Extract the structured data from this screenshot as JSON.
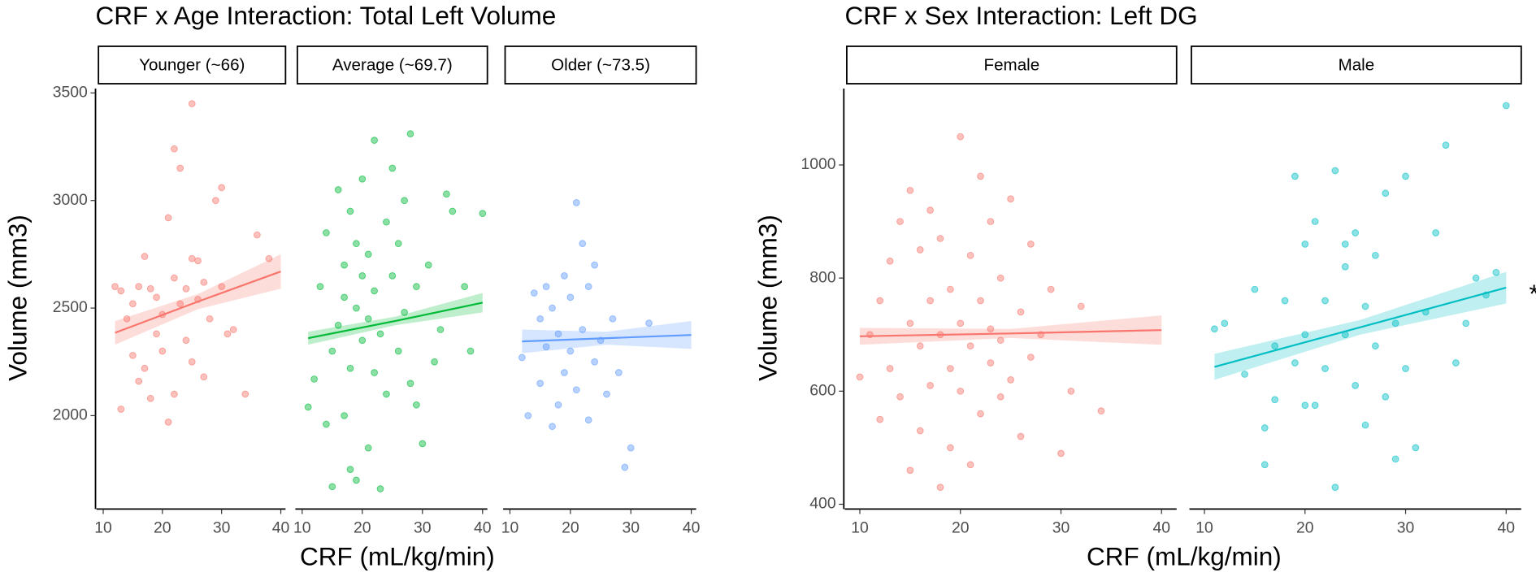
{
  "chart_data": [
    {
      "type": "scatter",
      "title": "CRF x Age Interaction: Total Left Volume",
      "xlabel": "CRF (mL/kg/min)",
      "ylabel": "Volume (mm3)",
      "xlim": [
        9.2,
        40.8
      ],
      "xticks": [
        10,
        20,
        30,
        40
      ],
      "ylim": [
        1575,
        3520
      ],
      "yticks": [
        2000,
        2500,
        3000,
        3500
      ],
      "facets": [
        {
          "name": "Younger (~66)",
          "color": "#F8766D",
          "x": [
            12,
            13,
            13,
            14,
            15,
            15,
            16,
            16,
            17,
            17,
            18,
            18,
            19,
            19,
            20,
            20,
            21,
            21,
            22,
            22,
            22,
            23,
            23,
            24,
            24,
            25,
            25,
            25,
            26,
            26,
            27,
            27,
            28,
            29,
            30,
            30,
            31,
            32,
            34,
            36,
            38
          ],
          "y": [
            2600,
            2030,
            2580,
            2450,
            2520,
            2280,
            2160,
            2600,
            2220,
            2740,
            2080,
            2590,
            2550,
            2380,
            2300,
            2470,
            1970,
            2920,
            2640,
            3240,
            2100,
            3150,
            2520,
            2350,
            2590,
            3450,
            2730,
            2250,
            2720,
            2540,
            2180,
            2620,
            2450,
            3000,
            3060,
            2600,
            2380,
            2400,
            2100,
            2840,
            2730
          ],
          "fit": {
            "x": [
              12,
              26,
              40
            ],
            "y": [
              2385,
              2530,
              2670
            ],
            "lower": [
              2330,
              2495,
              2590
            ],
            "upper": [
              2440,
              2565,
              2750
            ]
          }
        },
        {
          "name": "Average (~69.7)",
          "color": "#00BA38",
          "x": [
            11,
            12,
            13,
            14,
            14,
            15,
            15,
            16,
            16,
            17,
            17,
            17,
            18,
            18,
            18,
            19,
            19,
            19,
            20,
            20,
            20,
            21,
            21,
            21,
            22,
            22,
            22,
            23,
            23,
            24,
            24,
            25,
            25,
            26,
            26,
            27,
            27,
            28,
            28,
            29,
            29,
            30,
            31,
            32,
            33,
            34,
            35,
            37,
            38,
            40
          ],
          "y": [
            2040,
            2170,
            2600,
            1960,
            2850,
            1670,
            2300,
            3050,
            2420,
            2000,
            2700,
            2550,
            1750,
            2950,
            2220,
            2500,
            1700,
            2800,
            2350,
            3100,
            2650,
            1850,
            2450,
            2750,
            2200,
            3280,
            2580,
            1660,
            2380,
            2900,
            2100,
            2650,
            3150,
            2300,
            2800,
            2480,
            3000,
            2150,
            3310,
            2600,
            2050,
            1870,
            2700,
            2250,
            2400,
            3030,
            2950,
            2600,
            2300,
            2940
          ],
          "fit": {
            "x": [
              11,
              25.5,
              40
            ],
            "y": [
              2360,
              2440,
              2525
            ],
            "lower": [
              2330,
              2420,
              2480
            ],
            "upper": [
              2390,
              2460,
              2570
            ]
          }
        },
        {
          "name": "Older (~73.5)",
          "color": "#619CFF",
          "x": [
            12,
            13,
            14,
            15,
            15,
            16,
            16,
            17,
            17,
            18,
            18,
            19,
            19,
            20,
            20,
            21,
            21,
            22,
            22,
            23,
            23,
            24,
            24,
            25,
            26,
            27,
            28,
            29,
            30,
            33
          ],
          "y": [
            2270,
            2000,
            2570,
            2450,
            2150,
            2600,
            2320,
            1950,
            2500,
            2380,
            2050,
            2200,
            2650,
            2550,
            2300,
            2990,
            2120,
            2800,
            2400,
            1980,
            2600,
            2250,
            2700,
            2350,
            2100,
            2450,
            2200,
            1760,
            1850,
            2430
          ],
          "fit": {
            "x": [
              12,
              26,
              40
            ],
            "y": [
              2345,
              2360,
              2375
            ],
            "lower": [
              2290,
              2330,
              2310
            ],
            "upper": [
              2400,
              2390,
              2440
            ]
          }
        }
      ]
    },
    {
      "type": "scatter",
      "title": "CRF x Sex Interaction: Left DG",
      "xlabel": "CRF (mL/kg/min)",
      "ylabel": "Volume (mm3)",
      "xlim": [
        8.7,
        41.5
      ],
      "xticks": [
        10,
        20,
        30,
        40
      ],
      "ylim": [
        395,
        1135
      ],
      "yticks": [
        400,
        600,
        800,
        1000
      ],
      "annotation": "*",
      "facets": [
        {
          "name": "Female",
          "color": "#F8766D",
          "x": [
            10,
            11,
            12,
            12,
            13,
            13,
            14,
            14,
            15,
            15,
            15,
            16,
            16,
            16,
            17,
            17,
            17,
            18,
            18,
            18,
            19,
            19,
            19,
            20,
            20,
            20,
            21,
            21,
            21,
            22,
            22,
            22,
            23,
            23,
            23,
            24,
            24,
            24,
            25,
            25,
            26,
            26,
            27,
            27,
            28,
            29,
            30,
            31,
            32,
            34
          ],
          "y": [
            625,
            700,
            760,
            550,
            830,
            640,
            900,
            590,
            955,
            720,
            460,
            680,
            850,
            530,
            610,
            760,
            920,
            430,
            700,
            870,
            640,
            780,
            500,
            1050,
            720,
            600,
            840,
            470,
            680,
            980,
            560,
            760,
            650,
            900,
            710,
            590,
            800,
            690,
            940,
            620,
            740,
            520,
            860,
            660,
            700,
            780,
            490,
            600,
            750,
            565
          ],
          "fit": {
            "x": [
              10,
              25,
              40
            ],
            "y": [
              697,
              702,
              708
            ],
            "lower": [
              682,
              694,
              682
            ],
            "upper": [
              712,
              710,
              734
            ]
          }
        },
        {
          "name": "Male",
          "color": "#00BFC4",
          "x": [
            11,
            12,
            14,
            15,
            16,
            16,
            17,
            17,
            18,
            19,
            19,
            20,
            20,
            21,
            21,
            22,
            22,
            23,
            23,
            24,
            24,
            25,
            25,
            26,
            26,
            27,
            27,
            28,
            28,
            29,
            29,
            30,
            30,
            31,
            32,
            33,
            34,
            35,
            36,
            37,
            38,
            39,
            40,
            24,
            20
          ],
          "y": [
            710,
            720,
            630,
            780,
            535,
            470,
            680,
            585,
            760,
            650,
            980,
            700,
            860,
            575,
            900,
            640,
            760,
            430,
            990,
            700,
            820,
            610,
            880,
            750,
            540,
            680,
            840,
            950,
            590,
            720,
            480,
            980,
            640,
            500,
            740,
            880,
            1035,
            650,
            720,
            800,
            770,
            810,
            1105,
            860,
            575
          ],
          "fit": {
            "x": [
              11,
              25.5,
              40
            ],
            "y": [
              643,
              713,
              783
            ],
            "lower": [
              620,
              700,
              755
            ],
            "upper": [
              666,
              726,
              811
            ]
          }
        }
      ]
    }
  ]
}
